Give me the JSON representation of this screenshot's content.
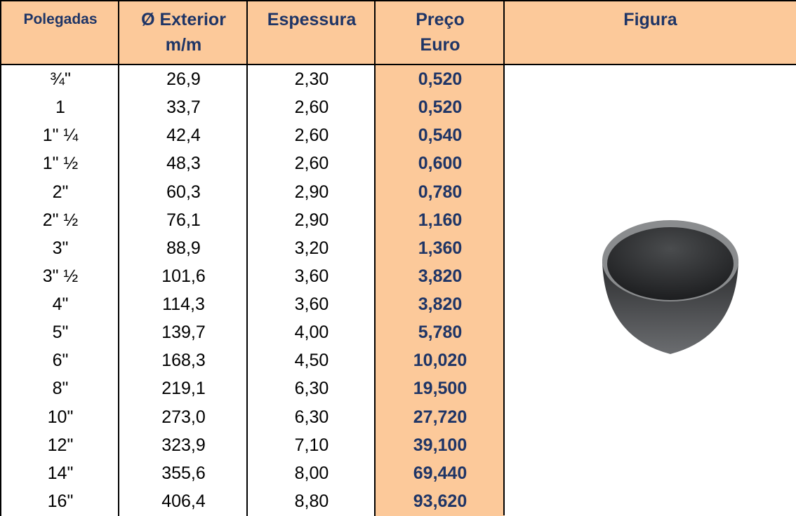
{
  "table": {
    "header": [
      [
        "Polegadas"
      ],
      [
        "Ø Exterior",
        "m/m"
      ],
      [
        "Espessura"
      ],
      [
        "Preço",
        "Euro"
      ],
      [
        "Figura"
      ]
    ],
    "rows": [
      [
        "¾\"",
        "26,9",
        "2,30",
        "0,520"
      ],
      [
        "1",
        "33,7",
        "2,60",
        "0,520"
      ],
      [
        "1\" ¼",
        "42,4",
        "2,60",
        "0,540"
      ],
      [
        "1\" ½",
        "48,3",
        "2,60",
        "0,600"
      ],
      [
        "2\"",
        "60,3",
        "2,90",
        "0,780"
      ],
      [
        "2\" ½",
        "76,1",
        "2,90",
        "1,160"
      ],
      [
        "3\"",
        "88,9",
        "3,20",
        "1,360"
      ],
      [
        "3\" ½",
        "101,6",
        "3,60",
        "3,820"
      ],
      [
        "4\"",
        "114,3",
        "3,60",
        "3,820"
      ],
      [
        "5\"",
        "139,7",
        "4,00",
        "5,780"
      ],
      [
        "6\"",
        "168,3",
        "4,50",
        "10,020"
      ],
      [
        "8\"",
        "219,1",
        "6,30",
        "19,500"
      ],
      [
        "10\"",
        "273,0",
        "6,30",
        "27,720"
      ],
      [
        "12\"",
        "323,9",
        "7,10",
        "39,100"
      ],
      [
        "14\"",
        "355,6",
        "8,00",
        "69,440"
      ],
      [
        "16\"",
        "406,4",
        "8,80",
        "93,620"
      ]
    ]
  }
}
